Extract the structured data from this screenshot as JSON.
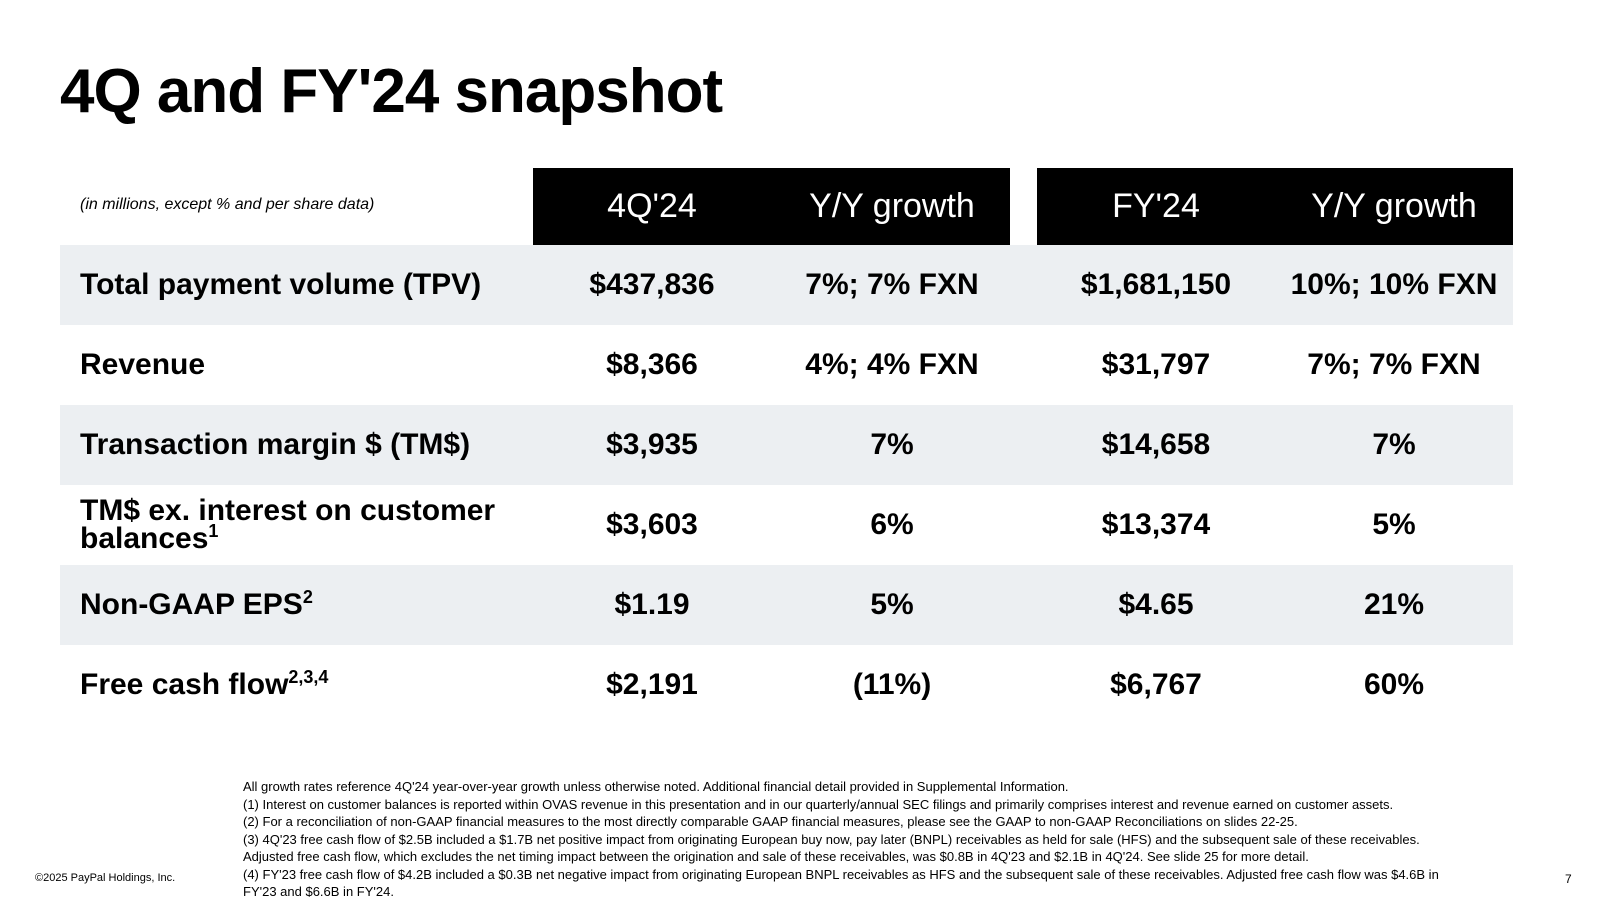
{
  "title": "4Q and FY'24 snapshot",
  "table": {
    "note": "(in millions, except % and per share data)",
    "header": [
      "4Q'24",
      "Y/Y growth",
      "FY'24",
      "Y/Y growth"
    ],
    "rows": [
      {
        "label": "Total payment volume (TPV)",
        "cells": [
          "$437,836",
          "7%; 7% FXN",
          "$1,681,150",
          "10%; 10% FXN"
        ]
      },
      {
        "label": "Revenue",
        "cells": [
          "$8,366",
          "4%; 4% FXN",
          "$31,797",
          "7%; 7% FXN"
        ]
      },
      {
        "label": "Transaction margin $ (TM$)",
        "cells": [
          "$3,935",
          "7%",
          "$14,658",
          "7%"
        ]
      },
      {
        "label": "TM$ ex. interest on customer balances",
        "sup": "1",
        "cells": [
          "$3,603",
          "6%",
          "$13,374",
          "5%"
        ]
      },
      {
        "label": "Non-GAAP EPS",
        "sup": "2",
        "cells": [
          "$1.19",
          "5%",
          "$4.65",
          "21%"
        ]
      },
      {
        "label": "Free cash flow",
        "sup": "2,3,4",
        "cells": [
          "$2,191",
          "(11%)",
          "$6,767",
          "60%"
        ]
      }
    ]
  },
  "footnotes": [
    "All growth rates reference 4Q'24 year-over-year growth unless otherwise noted. Additional financial detail provided in Supplemental Information.",
    "(1) Interest on customer balances is reported within OVAS revenue in this presentation and in our quarterly/annual SEC filings and primarily comprises interest and revenue earned on customer assets.",
    "(2) For a reconciliation of non-GAAP financial measures to the most directly comparable GAAP financial measures, please see the GAAP to non-GAAP Reconciliations on slides 22-25.",
    "(3) 4Q'23 free cash flow of $2.5B included a $1.7B net positive impact from originating European buy now, pay later (BNPL) receivables as held for sale (HFS) and the subsequent sale of these receivables. Adjusted free cash flow, which excludes the net timing impact between the origination and sale of these receivables, was $0.8B in 4Q'23 and $2.1B in 4Q'24. See slide 25 for more detail.",
    "(4) FY'23 free cash flow of $4.2B included a $0.3B net negative impact from originating European BNPL receivables as HFS and the subsequent sale of these receivables. Adjusted free cash flow was $4.6B in FY'23 and $6.6B in FY'24."
  ],
  "copyright": "©2025 PayPal Holdings, Inc.",
  "page_number": "7"
}
